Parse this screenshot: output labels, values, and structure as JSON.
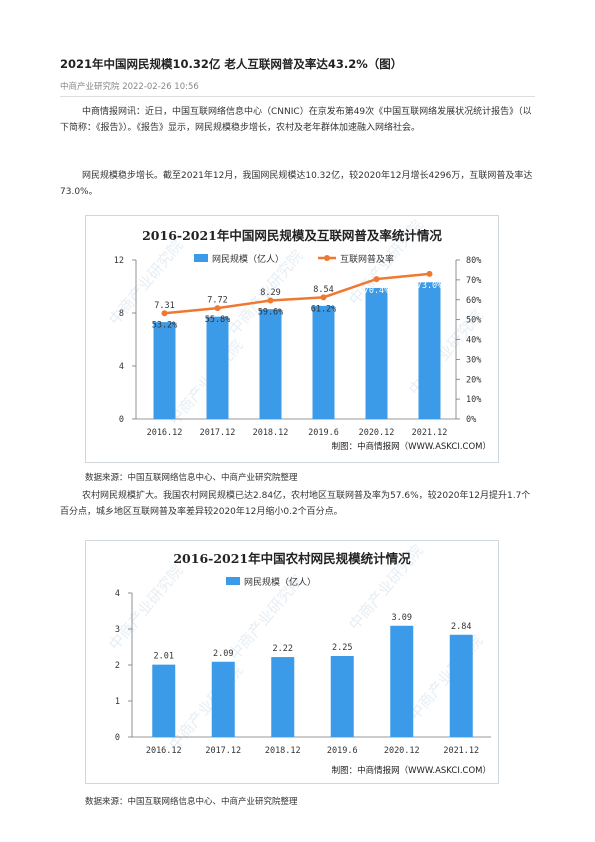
{
  "article": {
    "title": "2021年中国网民规模10.32亿 老人互联网普及率达43.2%（图）",
    "meta": "中商产业研究院 2022-02-26 10:56",
    "para1": "中商情报网讯：近日，中国互联网络信息中心（CNNIC）在京发布第49次《中国互联网络发展状况统计报告》（以下简称：《报告》）。《报告》显示，网民规模稳步增长，农村及老年群体加速融入网络社会。",
    "para2": "网民规模稳步增长。截至2021年12月，我国网民规模达10.32亿，较2020年12月增长4296万，互联网普及率达73.0%。",
    "source1": "数据来源：中国互联网络信息中心、中商产业研究院整理",
    "para3": "农村网民规模扩大。我国农村网民规模已达2.84亿，农村地区互联网普及率为57.6%，较2020年12月提升1.7个百分点，城乡地区互联网普及率差异较2020年12月缩小0.2个百分点。",
    "source2": "数据来源：中国互联网络信息中心、中商产业研究院整理"
  },
  "chart_data": [
    {
      "type": "bar",
      "title": "2016-2021年中国网民规模及互联网普及率统计情况",
      "categories": [
        "2016.12",
        "2017.12",
        "2018.12",
        "2019.6",
        "2020.12",
        "2021.12"
      ],
      "series": [
        {
          "name": "网民规模（亿人）",
          "type": "bar",
          "axis": "left",
          "values": [
            7.31,
            7.72,
            8.29,
            8.54,
            9.89,
            10.32
          ]
        },
        {
          "name": "互联网普及率",
          "type": "line",
          "axis": "right",
          "values": [
            53.2,
            55.8,
            59.6,
            61.2,
            70.4,
            73.0
          ],
          "labels": [
            "53.2%",
            "55.8%",
            "59.6%",
            "61.2%",
            "70.4%",
            "73.0%"
          ]
        }
      ],
      "ylim": [
        0,
        12
      ],
      "yticks": [
        "0",
        "4",
        "8",
        "12"
      ],
      "y2lim": [
        0,
        80
      ],
      "y2ticks": [
        "0%",
        "10%",
        "20%",
        "30%",
        "40%",
        "50%",
        "60%",
        "70%",
        "80%"
      ],
      "credit": "制图：中商情报网（WWW.ASKCI.COM）",
      "watermark": "中商产业研究院",
      "colors": {
        "bar": "#3b9be8",
        "line": "#f07830"
      },
      "legend_position": "top"
    },
    {
      "type": "bar",
      "title": "2016-2021年中国农村网民规模统计情况",
      "categories": [
        "2016.12",
        "2017.12",
        "2018.12",
        "2019.6",
        "2020.12",
        "2021.12"
      ],
      "series": [
        {
          "name": "网民规模（亿人）",
          "values": [
            2.01,
            2.09,
            2.22,
            2.25,
            3.09,
            2.84
          ]
        }
      ],
      "ylim": [
        0,
        4
      ],
      "yticks": [
        "0",
        "1",
        "2",
        "3",
        "4"
      ],
      "credit": "制图：中商情报网（WWW.ASKCI.COM）",
      "watermark": "中商产业研究院",
      "colors": {
        "bar": "#3b9be8"
      },
      "legend_position": "top"
    }
  ]
}
